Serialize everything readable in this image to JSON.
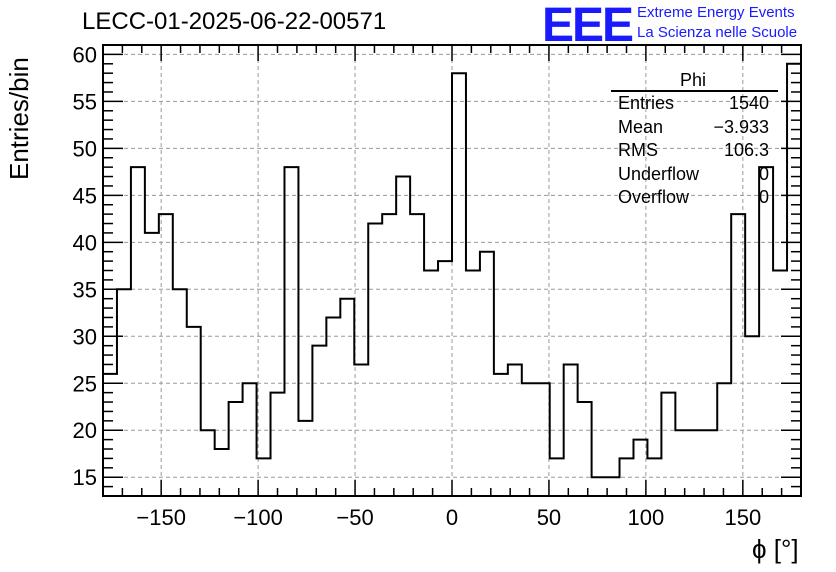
{
  "header": {
    "title": "LECC-01-2025-06-22-00571",
    "logo_text": "EEE",
    "logo_line1": "Extreme Energy Events",
    "logo_line2": "La Scienza nelle Scuole"
  },
  "stats_box": {
    "title": "Phi",
    "rows": [
      {
        "label": "Entries",
        "value": "1540"
      },
      {
        "label": "Mean",
        "value": "−3.933"
      },
      {
        "label": "RMS",
        "value": "106.3"
      },
      {
        "label": "Underflow",
        "value": "0"
      },
      {
        "label": "Overflow",
        "value": "0"
      }
    ]
  },
  "chart_data": {
    "type": "histogram",
    "xlabel": "ϕ [°]",
    "ylabel": "Entries/bin",
    "xlim": [
      -180,
      180
    ],
    "ylim": [
      13,
      61
    ],
    "grid": true,
    "bin_width": 7.2,
    "x_ticks": [
      -150,
      -100,
      -50,
      0,
      50,
      100,
      150
    ],
    "x_tick_labels": [
      "−150",
      "−100",
      "−50",
      "0",
      "50",
      "100",
      "150"
    ],
    "y_ticks": [
      15,
      20,
      25,
      30,
      35,
      40,
      45,
      50,
      55,
      60
    ],
    "y_tick_labels": [
      "15",
      "20",
      "25",
      "30",
      "35",
      "40",
      "45",
      "50",
      "55",
      "60"
    ],
    "values": [
      26,
      35,
      48,
      41,
      43,
      35,
      31,
      20,
      18,
      23,
      25,
      17,
      24,
      48,
      21,
      29,
      32,
      34,
      27,
      42,
      43,
      47,
      43,
      37,
      38,
      58,
      37,
      39,
      26,
      27,
      25,
      25,
      17,
      27,
      23,
      15,
      15,
      17,
      19,
      17,
      24,
      20,
      20,
      20,
      25,
      43,
      30,
      48,
      37,
      59
    ]
  }
}
